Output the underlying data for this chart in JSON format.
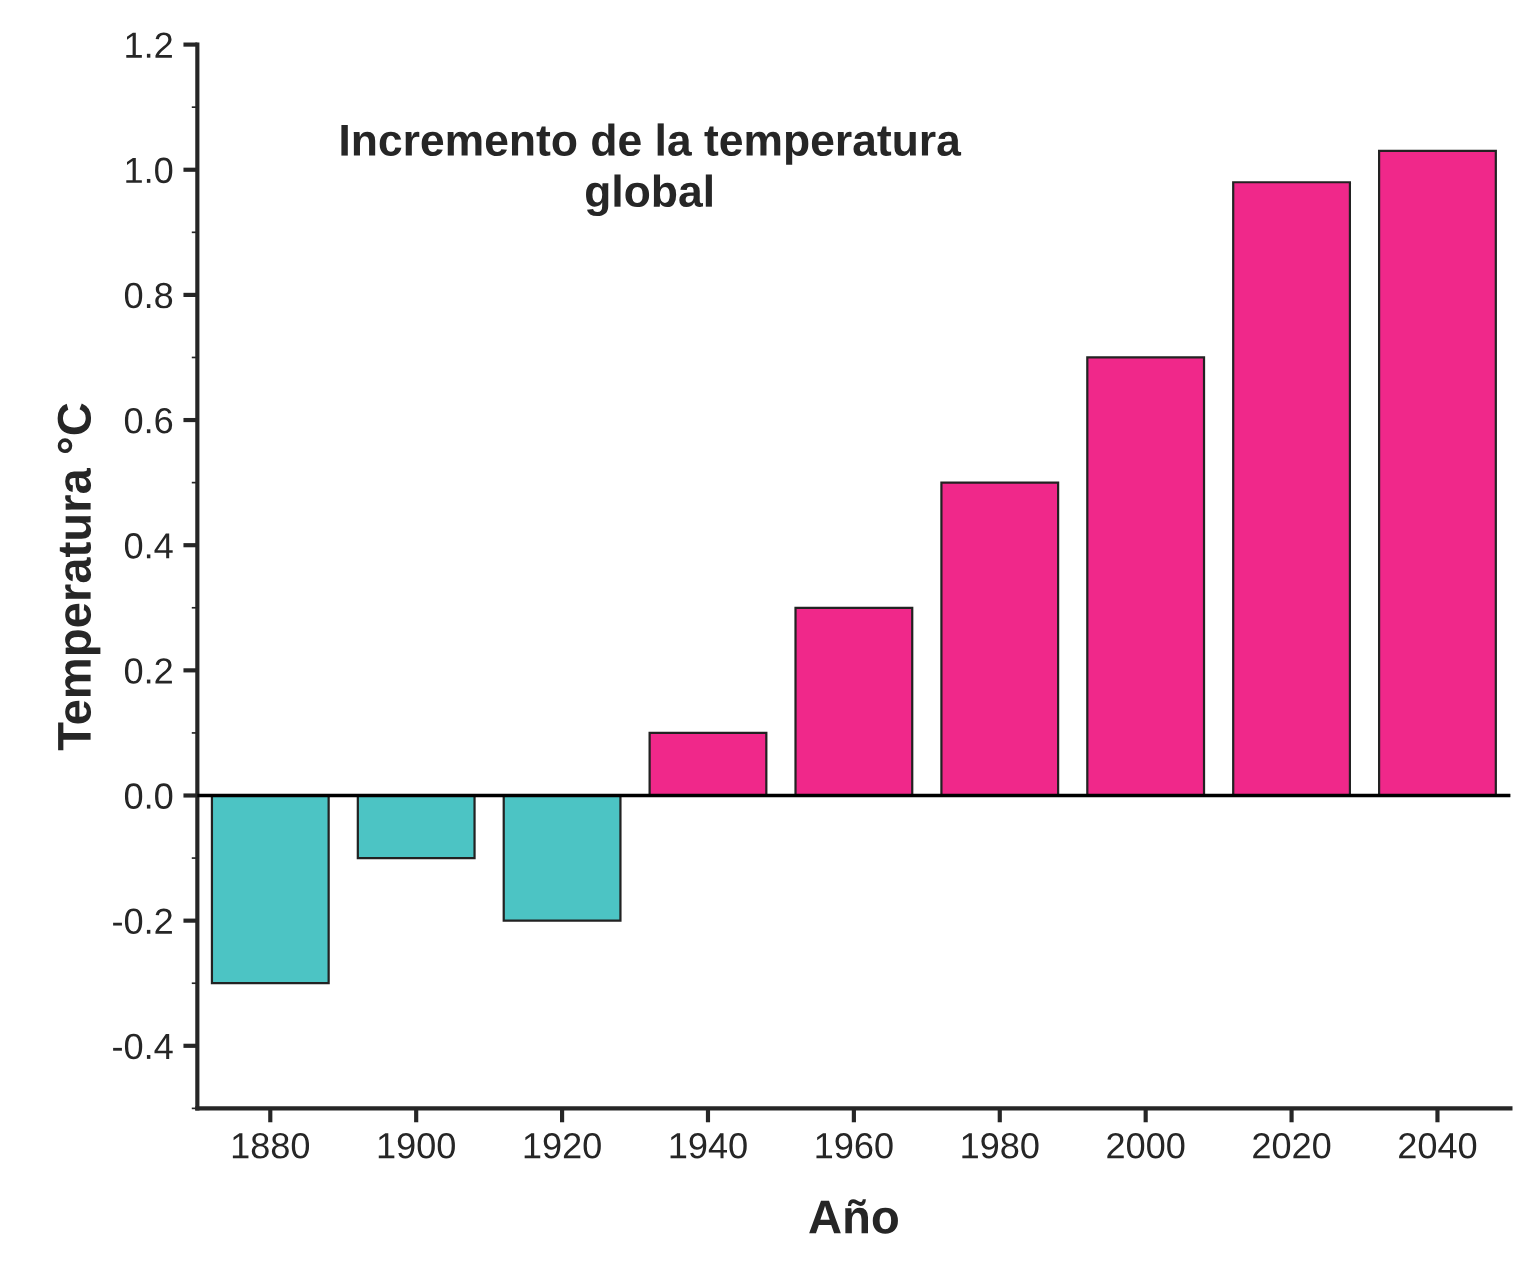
{
  "chart_data": {
    "type": "bar",
    "title": "Incremento de la temperatura global",
    "xlabel": "Año",
    "ylabel": "Temperatura °C",
    "categories": [
      "1880",
      "1900",
      "1920",
      "1940",
      "1960",
      "1980",
      "2000",
      "2020",
      "2040"
    ],
    "values": [
      -0.3,
      -0.1,
      -0.2,
      0.1,
      0.3,
      0.5,
      0.7,
      0.98,
      1.03
    ],
    "colors": [
      "#4cc4c4",
      "#4cc4c4",
      "#4cc4c4",
      "#f0288a",
      "#f0288a",
      "#f0288a",
      "#f0288a",
      "#f0288a",
      "#f0288a"
    ],
    "ylim": [
      -0.5,
      1.2
    ],
    "yticks": [
      {
        "value": -0.4,
        "label": "-0.4"
      },
      {
        "value": -0.2,
        "label": "-0.2"
      },
      {
        "value": 0.0,
        "label": "0.0"
      },
      {
        "value": 0.2,
        "label": "0.2"
      },
      {
        "value": 0.4,
        "label": "0.4"
      },
      {
        "value": 0.6,
        "label": "0.6"
      },
      {
        "value": 0.8,
        "label": "0.8"
      },
      {
        "value": 1.0,
        "label": "1.0"
      },
      {
        "value": 1.2,
        "label": "1.2"
      }
    ],
    "ref_lines": [
      {
        "axis": "y",
        "value": 0
      }
    ]
  }
}
